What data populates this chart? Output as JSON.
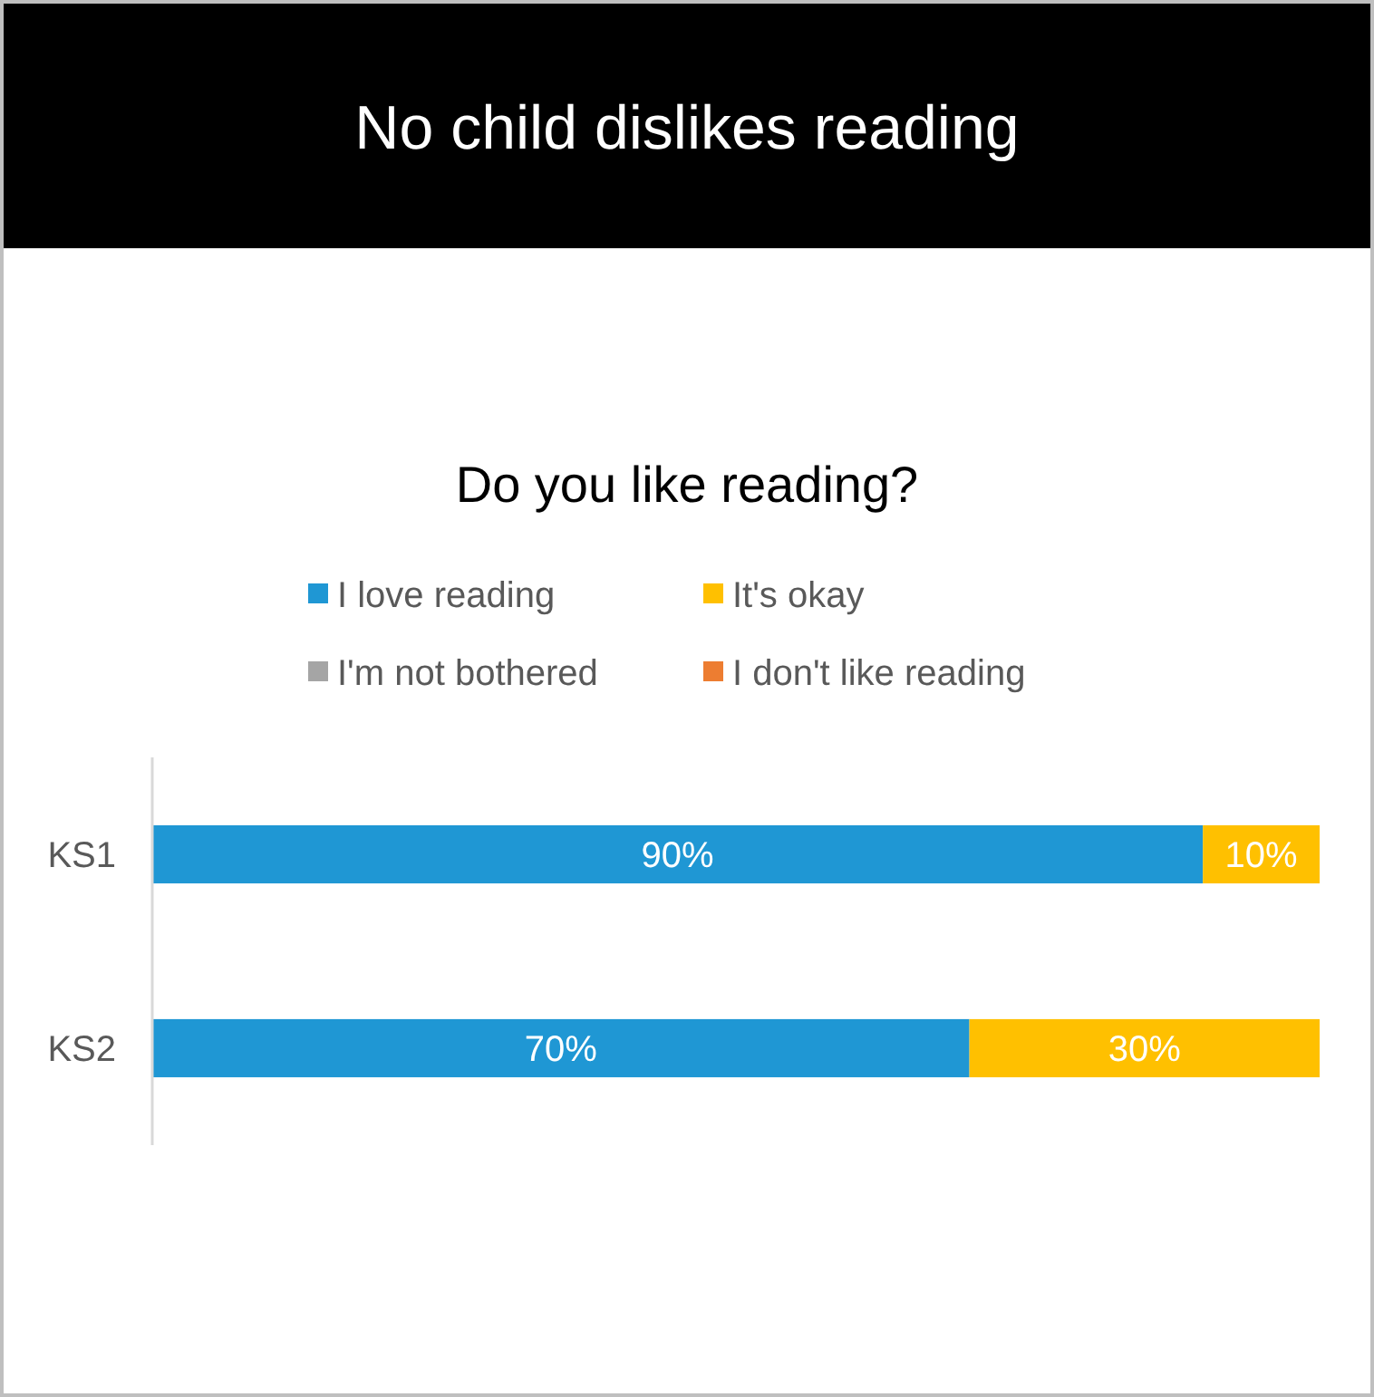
{
  "chart_data": {
    "type": "bar",
    "orientation": "horizontal",
    "stacked": true,
    "title": "No child dislikes reading",
    "subtitle": "Do you like reading?",
    "categories": [
      "KS1",
      "KS2"
    ],
    "xlim": [
      0,
      100
    ],
    "legend": "top",
    "grid": false,
    "tick_labels": "y",
    "series": [
      {
        "name": "I love reading",
        "color": "#1f97d4",
        "values": [
          90,
          70
        ],
        "value_labels": [
          "90%",
          "70%"
        ]
      },
      {
        "name": "It's okay",
        "color": "#ffc000",
        "values": [
          10,
          30
        ],
        "value_labels": [
          "10%",
          "30%"
        ]
      },
      {
        "name": "I'm not bothered",
        "color": "#a5a5a5",
        "values": [
          0,
          0
        ],
        "value_labels": [
          null,
          null
        ]
      },
      {
        "name": "I don't like reading",
        "color": "#ed7d31",
        "values": [
          0,
          0
        ],
        "value_labels": [
          null,
          null
        ]
      }
    ]
  }
}
